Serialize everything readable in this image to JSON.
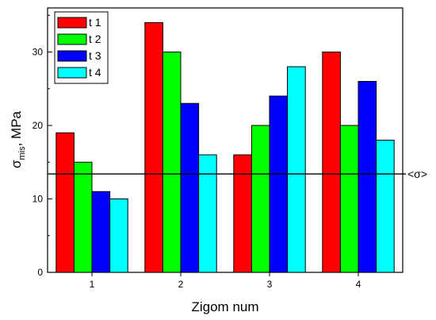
{
  "chart_data": {
    "type": "bar",
    "categories": [
      "1",
      "2",
      "3",
      "4"
    ],
    "series": [
      {
        "name": "t 1",
        "color": "#ff0000",
        "values": [
          19,
          34,
          16,
          30
        ]
      },
      {
        "name": "t 2",
        "color": "#00ff00",
        "values": [
          15,
          30,
          20,
          20
        ]
      },
      {
        "name": "t 3",
        "color": "#0000ff",
        "values": [
          11,
          23,
          24,
          26
        ]
      },
      {
        "name": "t 4",
        "color": "#00ffff",
        "values": [
          10,
          16,
          28,
          18
        ]
      }
    ],
    "xlabel": "Zigom num",
    "ylabel": "σ_mis, MPa",
    "ylabel_main": "σ",
    "ylabel_sub": "mis",
    "ylabel_rest": ", MPa",
    "ylim": [
      0,
      36
    ],
    "yticks": [
      0,
      10,
      20,
      30
    ],
    "reference_line": {
      "value": 13.4,
      "label": "<σ>"
    },
    "legend_position": "top-left",
    "grid": false
  }
}
